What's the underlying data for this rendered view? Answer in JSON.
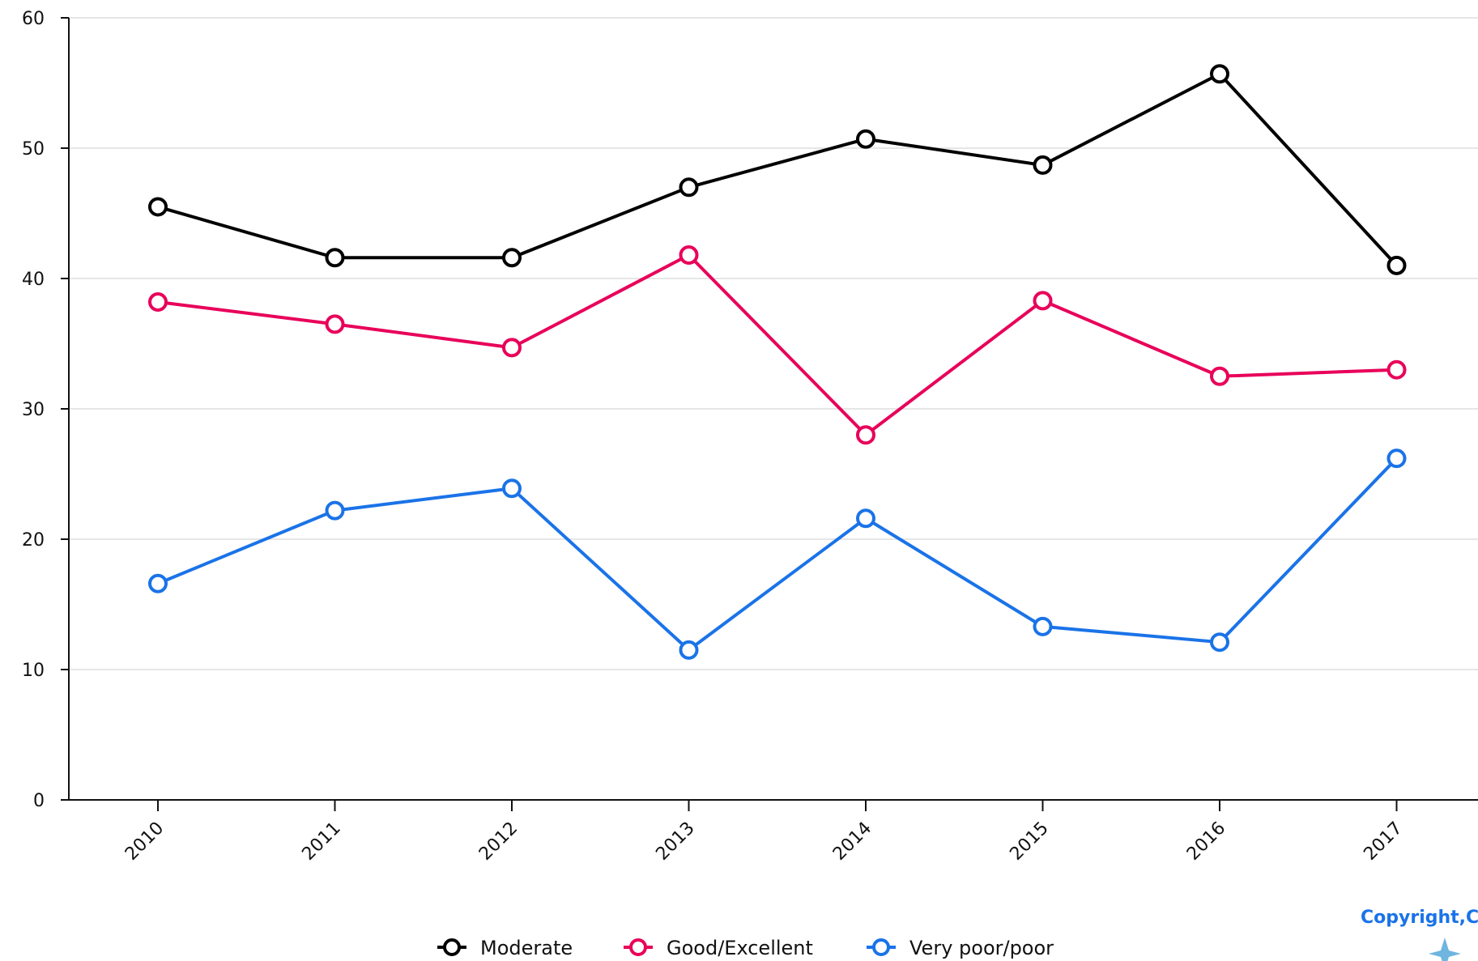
{
  "chart_data": {
    "type": "line",
    "title": "",
    "xlabel": "",
    "ylabel": "",
    "x": [
      "2010",
      "2011",
      "2012",
      "2013",
      "2014",
      "2015",
      "2016",
      "2017"
    ],
    "y_ticks": [
      "0",
      "10",
      "20",
      "30",
      "40",
      "50",
      "60"
    ],
    "ylim": [
      0,
      60
    ],
    "grid": true,
    "legend_position": "bottom",
    "series": [
      {
        "name": "Moderate",
        "color": "#000000",
        "values": [
          45.5,
          41.6,
          41.6,
          47.0,
          50.7,
          48.7,
          55.7,
          41.0
        ]
      },
      {
        "name": "Good/Excellent",
        "color": "#e8005a",
        "values": [
          38.2,
          36.5,
          34.7,
          41.8,
          28.0,
          38.3,
          32.5,
          33.0
        ]
      },
      {
        "name": "Very poor/poor",
        "color": "#1a73e8",
        "values": [
          16.6,
          22.2,
          23.9,
          11.5,
          21.6,
          13.3,
          12.1,
          26.2
        ]
      }
    ]
  },
  "watermark": {
    "text": "Copyright,C"
  }
}
